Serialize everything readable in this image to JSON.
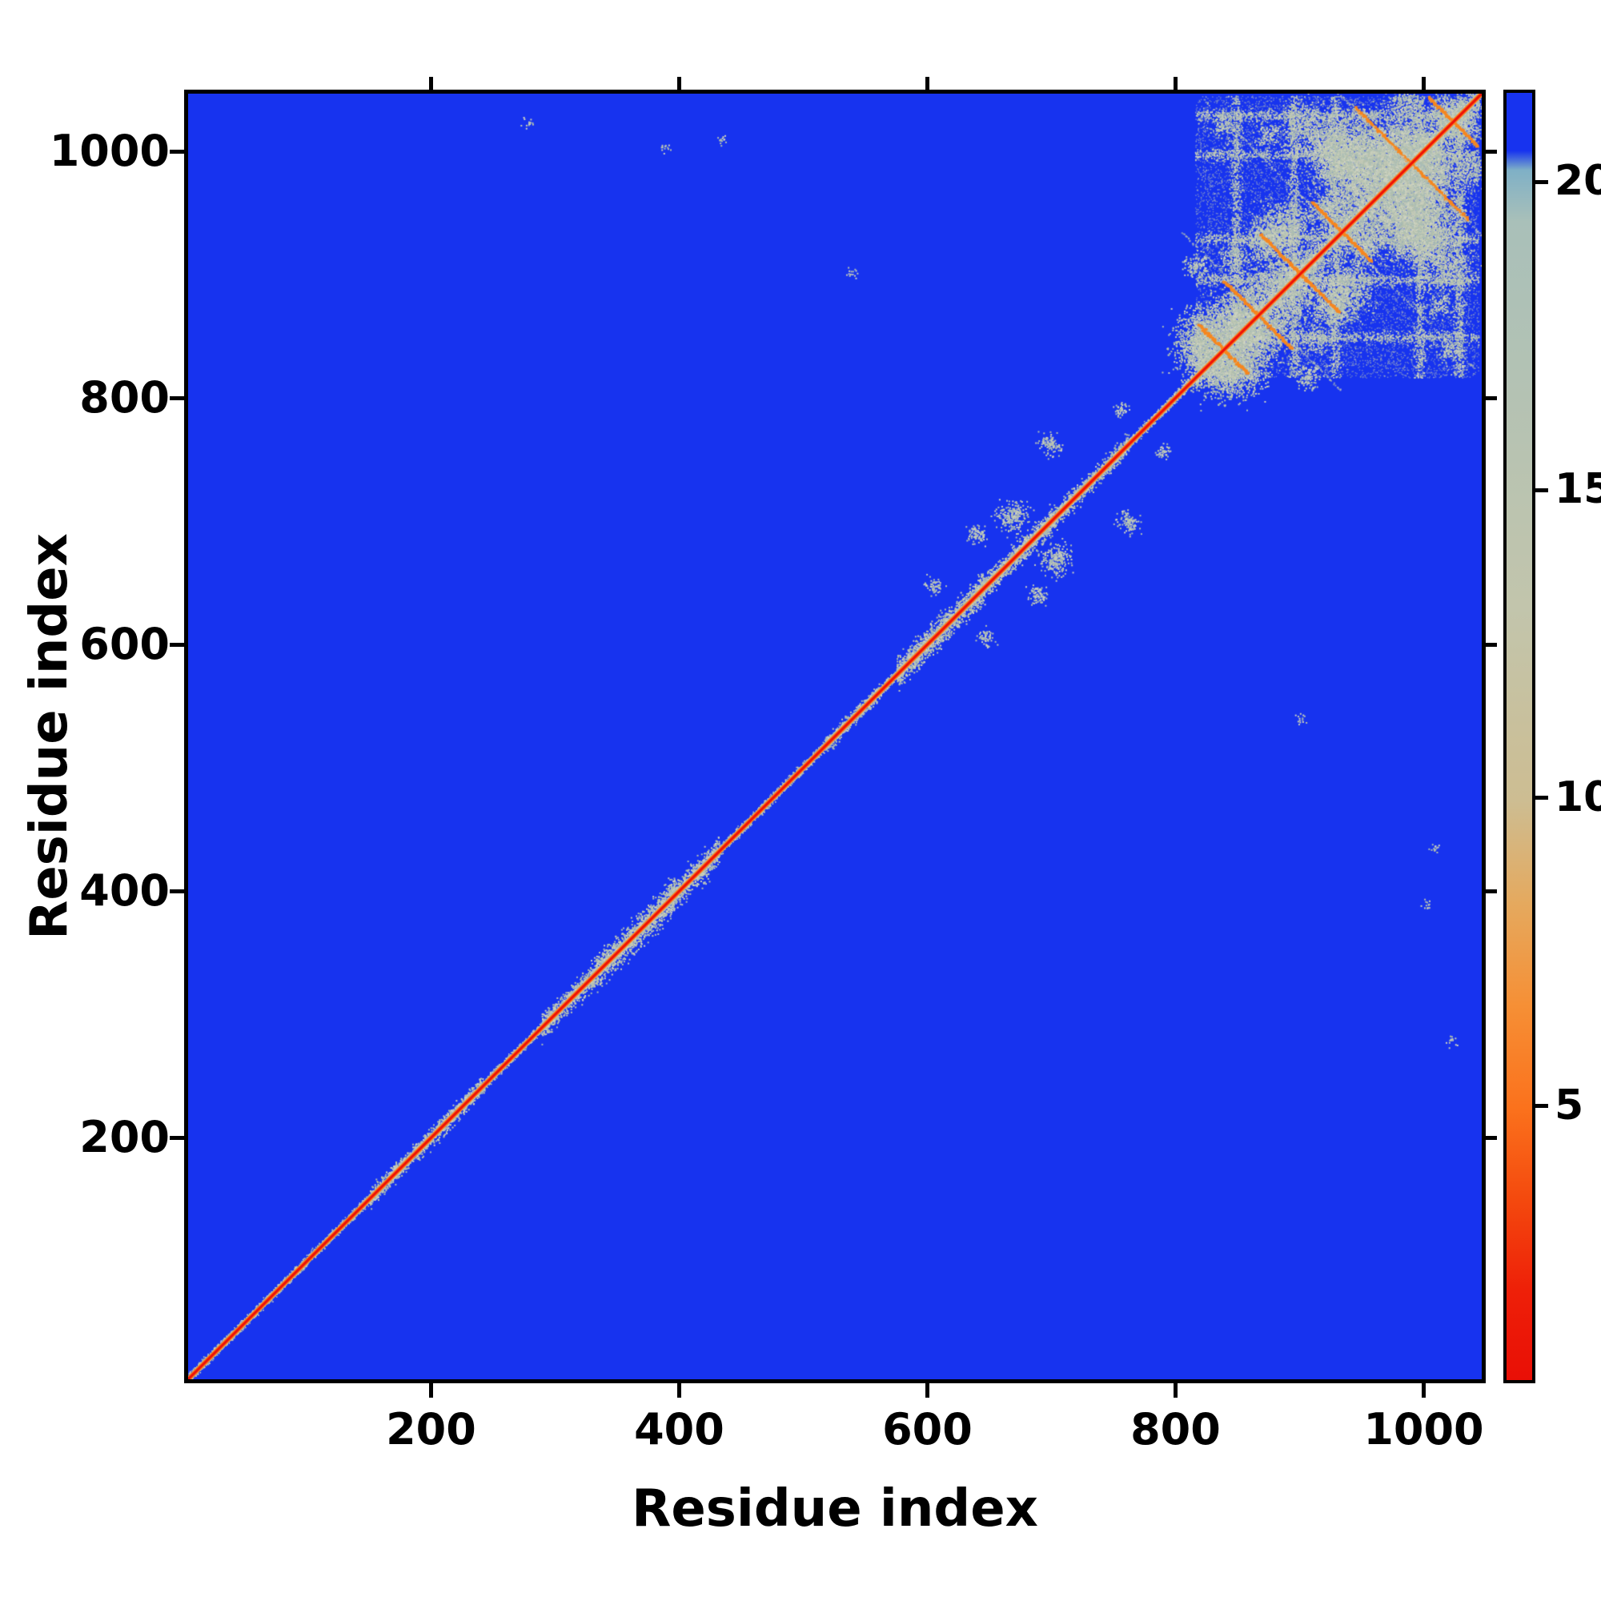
{
  "figure": {
    "background": "#ffffff"
  },
  "chart_data": {
    "type": "heatmap",
    "title": "",
    "xlabel": "Residue index",
    "ylabel": "Residue index",
    "x_range": [
      1,
      1050
    ],
    "y_range": [
      1,
      1050
    ],
    "x_ticks": [
      200,
      400,
      600,
      800,
      1000
    ],
    "y_ticks": [
      200,
      400,
      600,
      800,
      1000
    ],
    "grid": false,
    "description": "Symmetric residue-residue distance map. Deep blue background marks far pairs (capped at colorbar max ~21), a red zero-distance main diagonal with orange fringe, pale gray-green speckled clusters hugging the diagonal, a dense inter-contact block for residues ~818-1048 in the upper-right containing gray blobs, row/column contact bands and orange anti-diagonal (X-shaped) streaks, plus a few isolated off-diagonal specks.",
    "colorbar": {
      "ticks": [
        5,
        10,
        15,
        20
      ],
      "vmin": 0.5,
      "vmax": 21.5,
      "stops": [
        {
          "p": 0,
          "c": "#1733ef"
        },
        {
          "p": 4.5,
          "c": "#1733ef"
        },
        {
          "p": 6,
          "c": "#7fb0c6"
        },
        {
          "p": 10,
          "c": "#a9c0b9"
        },
        {
          "p": 40,
          "c": "#c2c5ac"
        },
        {
          "p": 55,
          "c": "#cdbd92"
        },
        {
          "p": 63,
          "c": "#e5a95e"
        },
        {
          "p": 71,
          "c": "#f68f35"
        },
        {
          "p": 79,
          "c": "#fb711c"
        },
        {
          "p": 86,
          "c": "#f4490e"
        },
        {
          "p": 93,
          "c": "#ee2008"
        },
        {
          "p": 100,
          "c": "#e90f06"
        }
      ]
    },
    "colors": {
      "background": "#1733ef",
      "diagonal_red": "#ee1208",
      "diagonal_orange": "#fb831c",
      "near_orange": "#f79a35",
      "streak_orange": "#f6871f",
      "blob_grays": [
        "#b4c0ae",
        "#c3cab6",
        "#ced3c0",
        "#a9bdb4"
      ]
    },
    "features": {
      "diagonal": {
        "value": 0,
        "red_width": 3.2,
        "orange_width": 6
      },
      "clusters": [
        {
          "s": 5,
          "e": 150,
          "w": 3
        },
        {
          "s": 148,
          "e": 242,
          "w": 8
        },
        {
          "s": 242,
          "e": 290,
          "w": 4
        },
        {
          "s": 288,
          "e": 334,
          "w": 11
        },
        {
          "s": 332,
          "e": 396,
          "w": 14
        },
        {
          "s": 392,
          "e": 432,
          "w": 12
        },
        {
          "s": 430,
          "e": 520,
          "w": 3
        },
        {
          "s": 518,
          "e": 562,
          "w": 7
        },
        {
          "s": 560,
          "e": 578,
          "w": 4
        },
        {
          "s": 576,
          "e": 646,
          "w": 13
        },
        {
          "s": 644,
          "e": 702,
          "w": 11
        },
        {
          "s": 700,
          "e": 764,
          "w": 9
        },
        {
          "s": 762,
          "e": 818,
          "w": 4
        },
        {
          "s": 818,
          "e": 1048,
          "w": 11
        }
      ],
      "block": {
        "start": 818,
        "end": 1048,
        "blob_count": 30,
        "bands": [
          851,
          898,
          931,
          1000,
          1032
        ]
      },
      "anti_streaks": [
        {
          "c": 841,
          "len": 20,
          "o": 1
        },
        {
          "c": 869,
          "len": 28,
          "o": 1
        },
        {
          "c": 903,
          "len": 32,
          "o": 1
        },
        {
          "c": 937,
          "len": 24,
          "o": 1
        },
        {
          "c": 993,
          "len": 46,
          "o": 1
        },
        {
          "c": 1027,
          "len": 20,
          "o": 1
        },
        {
          "c": 935,
          "len": 110,
          "o": 0
        },
        {
          "c": 992,
          "len": 75,
          "o": 0
        },
        {
          "c": 872,
          "len": 65,
          "o": 0
        }
      ],
      "patches": [
        {
          "x": 669,
          "y": 705,
          "r": 13
        },
        {
          "x": 701,
          "y": 763,
          "r": 9
        },
        {
          "x": 641,
          "y": 690,
          "r": 8
        },
        {
          "x": 606,
          "y": 649,
          "r": 7
        },
        {
          "x": 757,
          "y": 792,
          "r": 6
        }
      ],
      "specks": [
        [
          278,
          1026
        ],
        [
          434,
          1013
        ],
        [
          540,
          903
        ],
        [
          1006,
          388
        ]
      ]
    }
  }
}
